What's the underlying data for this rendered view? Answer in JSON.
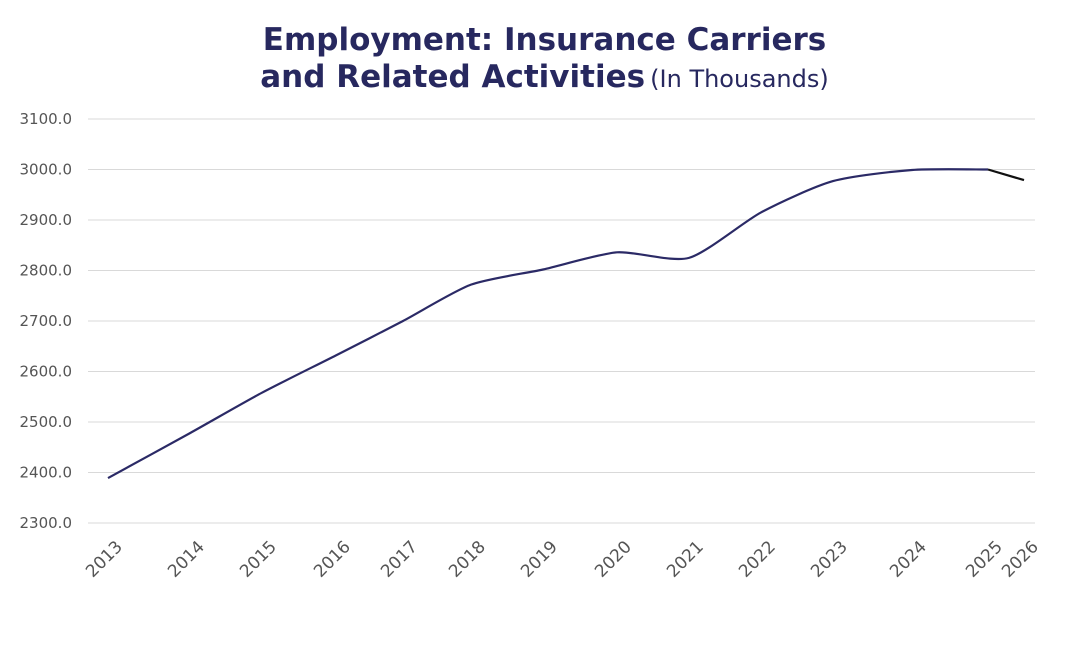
{
  "chart_data": {
    "type": "line",
    "title_line1": "Employment: Insurance Carriers",
    "title_line2": "and Related Activities",
    "subtitle": "(In Thousands)",
    "xlabel": "",
    "ylabel": "",
    "ylim": [
      2300,
      3100
    ],
    "y_ticks": [
      "2300.0",
      "2400.0",
      "2500.0",
      "2600.0",
      "2700.0",
      "2800.0",
      "2900.0",
      "3000.0",
      "3100.0"
    ],
    "x_ticks": [
      "2013",
      "2014",
      "2015",
      "2016",
      "2017",
      "2018",
      "2019",
      "2020",
      "2021",
      "2022",
      "2023",
      "2024",
      "2025",
      "2026"
    ],
    "grid": true,
    "legend": "none",
    "series": [
      {
        "color": "#2b2a66",
        "points": [
          {
            "x": "2013",
            "y": 2389
          },
          {
            "x": "2014",
            "y": 2478
          },
          {
            "x": "2015",
            "y": 2558
          },
          {
            "x": "2016",
            "y": 2632
          },
          {
            "x": "2017",
            "y": 2700
          },
          {
            "x": "2018",
            "y": 2772
          },
          {
            "x": "2019",
            "y": 2802
          },
          {
            "x": "2020",
            "y": 2836
          },
          {
            "x": "2021",
            "y": 2825
          },
          {
            "x": "2022",
            "y": 2915
          },
          {
            "x": "2023",
            "y": 2977
          },
          {
            "x": "2024",
            "y": 2999
          },
          {
            "x": "2025",
            "y": 3000
          }
        ]
      },
      {
        "color": "#111111",
        "points": [
          {
            "x": "2025",
            "y": 3000
          },
          {
            "x": "2026",
            "y": 2979
          }
        ]
      }
    ]
  }
}
